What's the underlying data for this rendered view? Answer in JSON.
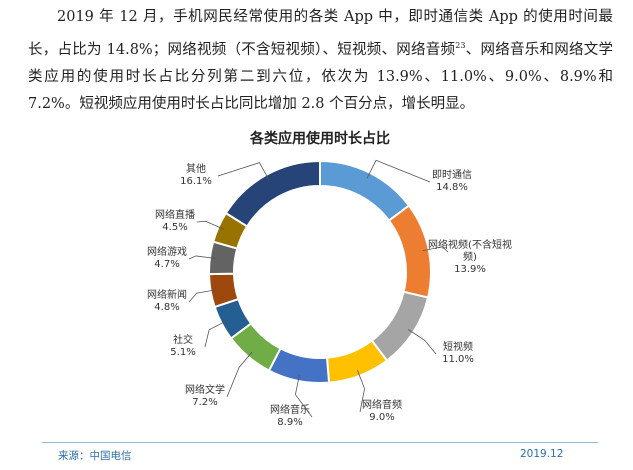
{
  "paragraph": {
    "part1": "2019 年 12 月，手机网民经常使用的各类 App 中，即时通信类 App 的使用时间最长，占比为 14.8%；网络视频（不含短视频）、短视频、网络音频",
    "footnote": "23",
    "part2": "、网络音乐和网络文学类应用的使用时长占比分列第二到六位，依次为 13.9%、11.0%、9.0%、8.9%和 7.2%。短视频应用使用时长占比同比增加 2.8 个百分点，增长明显。"
  },
  "chart_data": {
    "type": "pie",
    "donut": true,
    "title": "各类应用使用时长占比",
    "unit": "%",
    "start": "top",
    "direction": "clockwise",
    "slices": [
      {
        "label": "即时通信",
        "value": 14.8,
        "value_label": "14.8%",
        "color": "#5b9bd5"
      },
      {
        "label": "网络视频(不含短视频)",
        "value": 13.9,
        "value_label": "13.9%",
        "color": "#ed7d31"
      },
      {
        "label": "短视频",
        "value": 11.0,
        "value_label": "11.0%",
        "color": "#a5a5a5"
      },
      {
        "label": "网络音频",
        "value": 9.0,
        "value_label": "9.0%",
        "color": "#ffc000"
      },
      {
        "label": "网络音乐",
        "value": 8.9,
        "value_label": "8.9%",
        "color": "#4472c4"
      },
      {
        "label": "网络文学",
        "value": 7.2,
        "value_label": "7.2%",
        "color": "#70ad47"
      },
      {
        "label": "社交",
        "value": 5.1,
        "value_label": "5.1%",
        "color": "#255e91"
      },
      {
        "label": "网络新闻",
        "value": 4.8,
        "value_label": "4.8%",
        "color": "#9e480e"
      },
      {
        "label": "网络游戏",
        "value": 4.7,
        "value_label": "4.7%",
        "color": "#636363"
      },
      {
        "label": "网络直播",
        "value": 4.5,
        "value_label": "4.5%",
        "color": "#997300"
      },
      {
        "label": "其他",
        "value": 16.1,
        "value_label": "16.1%",
        "color": "#264478"
      }
    ]
  },
  "footer": {
    "source": "来源：中国电信",
    "date": "2019.12"
  }
}
